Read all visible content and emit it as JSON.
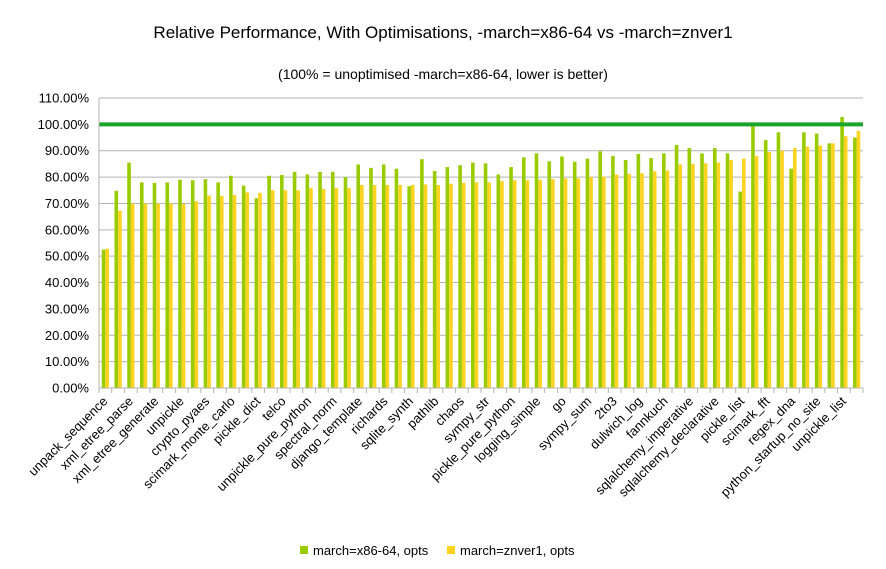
{
  "chart_data": {
    "type": "bar",
    "title": "Relative Performance, With Optimisations, -march=x86-64 vs -march=znver1",
    "subtitle": "(100% = unoptimised -march=x86-64, lower is better)",
    "ylim": [
      0,
      110
    ],
    "yticks": [
      "0.00%",
      "10.00%",
      "20.00%",
      "30.00%",
      "40.00%",
      "50.00%",
      "60.00%",
      "70.00%",
      "80.00%",
      "90.00%",
      "100.00%",
      "110.00%"
    ],
    "grid": true,
    "legend_position": "bottom",
    "reference_line": {
      "value": 100,
      "color": "#1aa42a"
    },
    "categories": [
      "unpack_sequence",
      "",
      "xml_etree_parse",
      "",
      "xml_etree_generate",
      "",
      "unpickle",
      "",
      "crypto_pyaes",
      "",
      "scimark_monte_carlo",
      "",
      "pickle_dict",
      "",
      "telco",
      "",
      "unpickle_pure_python",
      "",
      "spectral_norm",
      "",
      "django_template",
      "",
      "richards",
      "",
      "sqlite_synth",
      "",
      "pathlib",
      "",
      "chaos",
      "",
      "sympy_str",
      "",
      "pickle_pure_python",
      "",
      "logging_simple",
      "",
      "go",
      "",
      "sympy_sum",
      "",
      "2to3",
      "",
      "dulwich_log",
      "",
      "fannkuch",
      "",
      "sqlalchemy_imperative",
      "",
      "sqlalchemy_declarative",
      "",
      "pickle_list",
      "",
      "scimark_fft",
      "",
      "regex_dna",
      "",
      "python_startup_no_site",
      "",
      "unpickle_list",
      ""
    ],
    "series": [
      {
        "name": "march=x86-64, opts",
        "color": "#99cc00",
        "values": [
          52.5,
          74.8,
          85.5,
          78.0,
          77.8,
          78.0,
          79.0,
          78.8,
          79.2,
          78.0,
          80.5,
          76.8,
          72.0,
          80.5,
          80.8,
          82.0,
          81.0,
          82.0,
          82.0,
          80.0,
          84.8,
          83.5,
          84.8,
          83.2,
          76.5,
          86.8,
          82.3,
          83.8,
          84.5,
          85.5,
          85.2,
          81.0,
          83.8,
          87.5,
          89.0,
          86.0,
          87.8,
          85.8,
          87.0,
          89.8,
          88.0,
          86.5,
          88.8,
          87.2,
          89.0,
          92.2,
          91.0,
          89.0,
          91.0,
          89.0,
          74.5,
          100.0,
          94.0,
          97.0,
          83.2,
          97.0,
          96.5,
          92.8,
          102.8,
          95.0
        ]
      },
      {
        "name": "march=znver1, opts",
        "color": "#ffd320",
        "values": [
          52.8,
          67.2,
          70.0,
          70.0,
          70.0,
          70.0,
          69.8,
          70.8,
          73.0,
          72.8,
          73.2,
          74.2,
          74.0,
          75.0,
          75.0,
          75.0,
          75.8,
          75.5,
          75.8,
          75.8,
          77.0,
          77.0,
          77.0,
          77.0,
          77.0,
          77.2,
          77.0,
          77.5,
          77.8,
          78.0,
          78.0,
          78.5,
          78.8,
          78.8,
          79.0,
          79.2,
          79.5,
          79.5,
          80.0,
          80.2,
          81.0,
          81.2,
          81.5,
          82.2,
          82.5,
          84.8,
          85.0,
          85.2,
          85.5,
          86.5,
          87.0,
          88.0,
          89.5,
          90.0,
          91.0,
          91.5,
          92.0,
          92.8,
          95.5,
          97.5
        ]
      }
    ]
  }
}
